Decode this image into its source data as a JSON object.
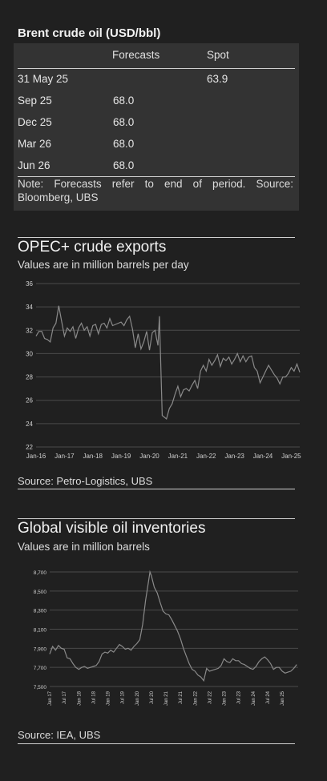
{
  "table": {
    "title": "Brent crude oil (USD/bbl)",
    "headers": [
      "",
      "Forecasts",
      "Spot"
    ],
    "rows": [
      {
        "period": "31 May 25",
        "forecast": "",
        "spot": "63.9"
      },
      {
        "period": "Sep 25",
        "forecast": "68.0",
        "spot": ""
      },
      {
        "period": "Dec 25",
        "forecast": "68.0",
        "spot": ""
      },
      {
        "period": "Mar 26",
        "forecast": "68.0",
        "spot": ""
      },
      {
        "period": "Jun 26",
        "forecast": "68.0",
        "spot": ""
      }
    ],
    "note": "Note: Forecasts refer to end of period. Source: Bloomberg, UBS"
  },
  "chart1": {
    "title": "OPEC+ crude exports",
    "subtitle": "Values are in million barrels per day",
    "source": "Source: Petro-Logistics, UBS"
  },
  "chart2": {
    "title": "Global visible oil inventories",
    "subtitle": "Values are in million barrels",
    "source": "Source: IEA, UBS"
  },
  "colors": {
    "background": "#202020",
    "table_bg": "#333333",
    "line": "#8a8a8a",
    "grid": "#4a4a4a"
  },
  "chart_data": [
    {
      "type": "line",
      "title": "OPEC+ crude exports",
      "ylabel": "Values are in million barrels per day",
      "ylim": [
        22,
        36
      ],
      "yticks": [
        22,
        24,
        26,
        28,
        30,
        32,
        34,
        36
      ],
      "xlim": [
        2016.0,
        2025.3
      ],
      "xticks": [
        {
          "x": 2016.0,
          "label": "Jan-16"
        },
        {
          "x": 2017.0,
          "label": "Jan-17"
        },
        {
          "x": 2018.0,
          "label": "Jan-18"
        },
        {
          "x": 2019.0,
          "label": "Jan-19"
        },
        {
          "x": 2020.0,
          "label": "Jan-20"
        },
        {
          "x": 2021.0,
          "label": "Jan-21"
        },
        {
          "x": 2022.0,
          "label": "Jan-22"
        },
        {
          "x": 2023.0,
          "label": "Jan-23"
        },
        {
          "x": 2024.0,
          "label": "Jan-24"
        },
        {
          "x": 2025.0,
          "label": "Jan-25"
        }
      ],
      "grid": true,
      "series": [
        {
          "x": [
            2016.0,
            2016.1,
            2016.2,
            2016.3,
            2016.4,
            2016.5,
            2016.6,
            2016.7,
            2016.8,
            2016.9,
            2017.0,
            2017.1,
            2017.2,
            2017.3,
            2017.4,
            2017.5,
            2017.6,
            2017.7,
            2017.8,
            2017.9,
            2018.0,
            2018.1,
            2018.2,
            2018.3,
            2018.4,
            2018.5,
            2018.6,
            2018.7,
            2018.8,
            2018.9,
            2019.0,
            2019.1,
            2019.2,
            2019.3,
            2019.4,
            2019.5,
            2019.6,
            2019.7,
            2019.8,
            2019.9,
            2020.0,
            2020.1,
            2020.2,
            2020.25,
            2020.3,
            2020.35,
            2020.45,
            2020.6,
            2020.7,
            2020.8,
            2020.9,
            2021.0,
            2021.1,
            2021.2,
            2021.3,
            2021.4,
            2021.5,
            2021.6,
            2021.7,
            2021.8,
            2021.9,
            2022.0,
            2022.1,
            2022.2,
            2022.3,
            2022.4,
            2022.5,
            2022.6,
            2022.7,
            2022.8,
            2022.9,
            2023.0,
            2023.1,
            2023.2,
            2023.3,
            2023.4,
            2023.5,
            2023.6,
            2023.7,
            2023.8,
            2023.9,
            2024.0,
            2024.1,
            2024.2,
            2024.3,
            2024.4,
            2024.5,
            2024.6,
            2024.7,
            2024.8,
            2024.9,
            2025.0,
            2025.1,
            2025.2,
            2025.3
          ],
          "y": [
            31.5,
            31.9,
            31.9,
            31.3,
            31.2,
            31.0,
            32.2,
            32.6,
            34.1,
            32.8,
            31.5,
            32.2,
            31.9,
            32.3,
            31.3,
            32.2,
            32.6,
            32.0,
            32.3,
            31.5,
            32.4,
            32.5,
            31.7,
            32.5,
            32.6,
            32.2,
            33.0,
            32.4,
            32.5,
            32.6,
            32.7,
            32.4,
            32.9,
            33.2,
            32.1,
            30.5,
            31.7,
            30.4,
            31.0,
            31.9,
            30.3,
            31.8,
            32.0,
            31.3,
            30.7,
            33.2,
            24.7,
            24.4,
            25.3,
            25.7,
            26.5,
            27.2,
            26.3,
            26.9,
            27.0,
            26.8,
            27.3,
            27.7,
            27.0,
            28.5,
            29.0,
            28.5,
            29.5,
            29.0,
            29.4,
            29.9,
            28.9,
            29.6,
            29.4,
            29.7,
            29.1,
            29.5,
            30.0,
            29.3,
            29.8,
            29.3,
            29.7,
            29.8,
            28.8,
            28.5,
            27.5,
            28.0,
            28.5,
            29.0,
            28.6,
            28.2,
            27.9,
            27.4,
            28.0,
            28.0,
            28.3,
            28.8,
            28.5,
            29.1,
            28.4
          ]
        }
      ]
    },
    {
      "type": "line",
      "title": "Global visible oil inventories",
      "ylabel": "Values are in million barrels",
      "ylim": [
        7500,
        8700
      ],
      "yticks": [
        {
          "y": 7500,
          "label": "7,500"
        },
        {
          "y": 7700,
          "label": "7,700"
        },
        {
          "y": 7900,
          "label": "7,900"
        },
        {
          "y": 8100,
          "label": "8,100"
        },
        {
          "y": 8300,
          "label": "8,300"
        },
        {
          "y": 8500,
          "label": "8,500"
        },
        {
          "y": 8700,
          "label": "8,700"
        }
      ],
      "xlim": [
        2017.0,
        2025.55
      ],
      "xticks": [
        {
          "x": 2017.0,
          "label": "Jan 17"
        },
        {
          "x": 2017.5,
          "label": "Jul 17"
        },
        {
          "x": 2018.0,
          "label": "Jan 18"
        },
        {
          "x": 2018.5,
          "label": "Jul 18"
        },
        {
          "x": 2019.0,
          "label": "Jan 19"
        },
        {
          "x": 2019.5,
          "label": "Jul 19"
        },
        {
          "x": 2020.0,
          "label": "Jan 20"
        },
        {
          "x": 2020.5,
          "label": "Jul 20"
        },
        {
          "x": 2021.0,
          "label": "Jan 21"
        },
        {
          "x": 2021.5,
          "label": "Jul 21"
        },
        {
          "x": 2022.0,
          "label": "Jan 22"
        },
        {
          "x": 2022.5,
          "label": "Jul 22"
        },
        {
          "x": 2023.0,
          "label": "Jan 23"
        },
        {
          "x": 2023.5,
          "label": "Jul 23"
        },
        {
          "x": 2024.0,
          "label": "Jan 24"
        },
        {
          "x": 2024.5,
          "label": "Jul 24"
        },
        {
          "x": 2025.0,
          "label": "Jan 25"
        }
      ],
      "grid": true,
      "series": [
        {
          "x": [
            2017.0,
            2017.1,
            2017.2,
            2017.3,
            2017.4,
            2017.5,
            2017.6,
            2017.7,
            2017.8,
            2017.9,
            2018.0,
            2018.1,
            2018.2,
            2018.3,
            2018.4,
            2018.5,
            2018.6,
            2018.7,
            2018.8,
            2018.9,
            2019.0,
            2019.1,
            2019.2,
            2019.3,
            2019.4,
            2019.5,
            2019.6,
            2019.7,
            2019.8,
            2019.9,
            2020.0,
            2020.1,
            2020.2,
            2020.3,
            2020.4,
            2020.45,
            2020.5,
            2020.6,
            2020.7,
            2020.8,
            2020.9,
            2021.0,
            2021.1,
            2021.2,
            2021.3,
            2021.4,
            2021.5,
            2021.6,
            2021.7,
            2021.8,
            2021.9,
            2022.0,
            2022.1,
            2022.2,
            2022.3,
            2022.4,
            2022.5,
            2022.6,
            2022.7,
            2022.8,
            2022.9,
            2023.0,
            2023.1,
            2023.2,
            2023.3,
            2023.4,
            2023.5,
            2023.6,
            2023.7,
            2023.8,
            2023.9,
            2024.0,
            2024.1,
            2024.2,
            2024.3,
            2024.4,
            2024.5,
            2024.6,
            2024.7,
            2024.8,
            2024.9,
            2025.0,
            2025.1,
            2025.2,
            2025.3,
            2025.4,
            2025.5
          ],
          "y": [
            7840,
            7920,
            7880,
            7930,
            7900,
            7890,
            7800,
            7790,
            7740,
            7700,
            7680,
            7700,
            7710,
            7690,
            7700,
            7710,
            7720,
            7760,
            7840,
            7860,
            7850,
            7880,
            7860,
            7900,
            7940,
            7920,
            7890,
            7900,
            7880,
            7920,
            7950,
            7990,
            8150,
            8400,
            8600,
            8700,
            8660,
            8540,
            8480,
            8380,
            8290,
            8260,
            8250,
            8200,
            8140,
            8080,
            8000,
            7900,
            7820,
            7740,
            7680,
            7660,
            7620,
            7600,
            7560,
            7690,
            7660,
            7670,
            7680,
            7690,
            7720,
            7790,
            7760,
            7750,
            7790,
            7770,
            7770,
            7740,
            7730,
            7710,
            7690,
            7680,
            7710,
            7760,
            7790,
            7810,
            7780,
            7740,
            7680,
            7700,
            7700,
            7660,
            7640,
            7650,
            7660,
            7690,
            7730
          ]
        }
      ]
    }
  ]
}
